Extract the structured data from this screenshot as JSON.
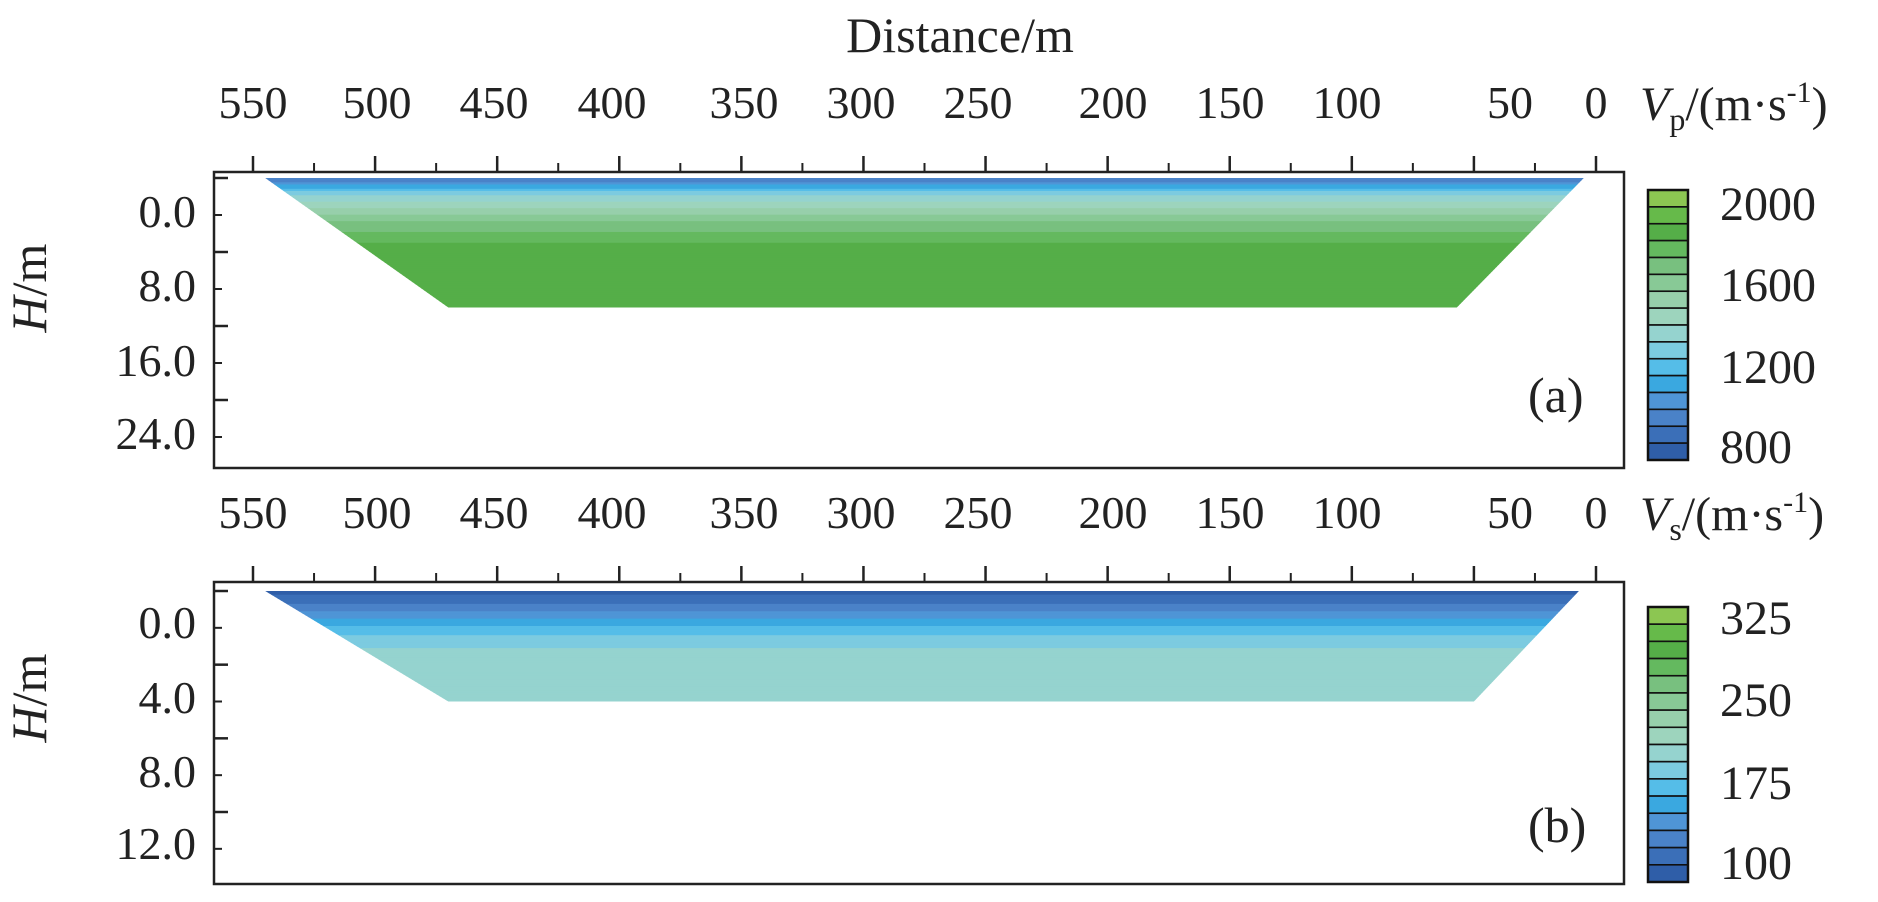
{
  "figure": {
    "top_title": "Distance/m",
    "panels": [
      {
        "tag": "(a)",
        "ylabel_var": "H",
        "ylabel_unit": "/m",
        "y_tick_labels": [
          "0.0",
          "8.0",
          "16.0",
          "24.0"
        ],
        "x_tick_labels": [
          "550",
          "500",
          "450",
          "400",
          "350",
          "300",
          "250",
          "200",
          "150",
          "100",
          "50",
          "0"
        ],
        "colorbar": {
          "var": "V",
          "sub": "p",
          "unit_open": "/(m·s",
          "unit_exp": "-1",
          "unit_close": ")",
          "tick_labels": [
            "2000",
            "1600",
            "1200",
            "800"
          ]
        }
      },
      {
        "tag": "(b)",
        "ylabel_var": "H",
        "ylabel_unit": "/m",
        "y_tick_labels": [
          "0.0",
          "4.0",
          "8.0",
          "12.0"
        ],
        "x_tick_labels": [
          "550",
          "500",
          "450",
          "400",
          "350",
          "300",
          "250",
          "200",
          "150",
          "100",
          "50",
          "0"
        ],
        "colorbar": {
          "var": "V",
          "sub": "s",
          "unit_open": "/(m·s",
          "unit_exp": "-1",
          "unit_close": ")",
          "tick_labels": [
            "325",
            "250",
            "175",
            "100"
          ]
        }
      }
    ]
  },
  "chart_data": [
    {
      "type": "heatmap",
      "title": "(a)",
      "xlabel": "Distance/m",
      "ylabel": "H/m",
      "xlim": [
        560,
        -5
      ],
      "x_reversed": true,
      "ylim": [
        0,
        28
      ],
      "y_reversed": true,
      "x_ticks": [
        550,
        500,
        450,
        400,
        350,
        300,
        250,
        200,
        150,
        100,
        50,
        0
      ],
      "y_ticks": [
        0,
        8,
        16,
        24
      ],
      "colorbar": {
        "label": "Vp/(m·s-1)",
        "range": [
          800,
          2000
        ],
        "levels": [
          800,
          875,
          950,
          1025,
          1100,
          1175,
          1250,
          1325,
          1400,
          1475,
          1550,
          1625,
          1700,
          1775,
          1850,
          1925
        ],
        "colors": [
          "#2f5ea8",
          "#3b6fb8",
          "#4a82c8",
          "#4f95d6",
          "#3aa8e0",
          "#55bde8",
          "#7ccbe0",
          "#95d3cf",
          "#9dd4bd",
          "#97cfab",
          "#88c996",
          "#78c07f",
          "#64b95f",
          "#55ae48",
          "#66ba4a",
          "#8cc652"
        ],
        "tick_values": [
          2000,
          1600,
          1200,
          800
        ]
      },
      "section": {
        "x_left_top": 545,
        "x_right_top": 5,
        "x_left_bottom": 470,
        "x_right_bottom": 57,
        "max_depth": 14,
        "depth_profile": [
          {
            "depth": 0,
            "velocity": 950
          },
          {
            "depth": 1,
            "velocity": 1150
          },
          {
            "depth": 2,
            "velocity": 1350
          },
          {
            "depth": 3.5,
            "velocity": 1500
          },
          {
            "depth": 5,
            "velocity": 1650
          },
          {
            "depth": 7,
            "velocity": 1780
          },
          {
            "depth": 10,
            "velocity": 1820
          },
          {
            "depth": 14,
            "velocity": 1800
          }
        ]
      }
    },
    {
      "type": "heatmap",
      "title": "(b)",
      "xlabel": "Distance/m",
      "ylabel": "H/m",
      "xlim": [
        560,
        -5
      ],
      "x_reversed": true,
      "ylim": [
        0,
        14
      ],
      "y_reversed": true,
      "x_ticks": [
        550,
        500,
        450,
        400,
        350,
        300,
        250,
        200,
        150,
        100,
        50,
        0
      ],
      "y_ticks": [
        0,
        4,
        8,
        12
      ],
      "colorbar": {
        "label": "Vs/(m·s-1)",
        "range": [
          100,
          325
        ],
        "levels": [
          100,
          114,
          128,
          142,
          156,
          170,
          184,
          198,
          212,
          226,
          240,
          254,
          268,
          282,
          296,
          310
        ],
        "colors": [
          "#2f5ea8",
          "#3b6fb8",
          "#4a82c8",
          "#4f95d6",
          "#3aa8e0",
          "#55bde8",
          "#7ccbe0",
          "#95d3cf",
          "#9dd4bd",
          "#97cfab",
          "#88c996",
          "#78c07f",
          "#64b95f",
          "#55ae48",
          "#66ba4a",
          "#8cc652"
        ],
        "tick_values": [
          325,
          250,
          175,
          100
        ]
      },
      "section": {
        "x_left_top": 545,
        "x_right_top": 7,
        "x_left_bottom": 470,
        "x_right_bottom": 50,
        "max_depth": 6,
        "depth_profile": [
          {
            "depth": 0,
            "velocity": 108
          },
          {
            "depth": 0.8,
            "velocity": 130
          },
          {
            "depth": 1.6,
            "velocity": 160
          },
          {
            "depth": 2.4,
            "velocity": 185
          },
          {
            "depth": 3.5,
            "velocity": 205
          },
          {
            "depth": 6,
            "velocity": 210
          }
        ]
      }
    }
  ]
}
